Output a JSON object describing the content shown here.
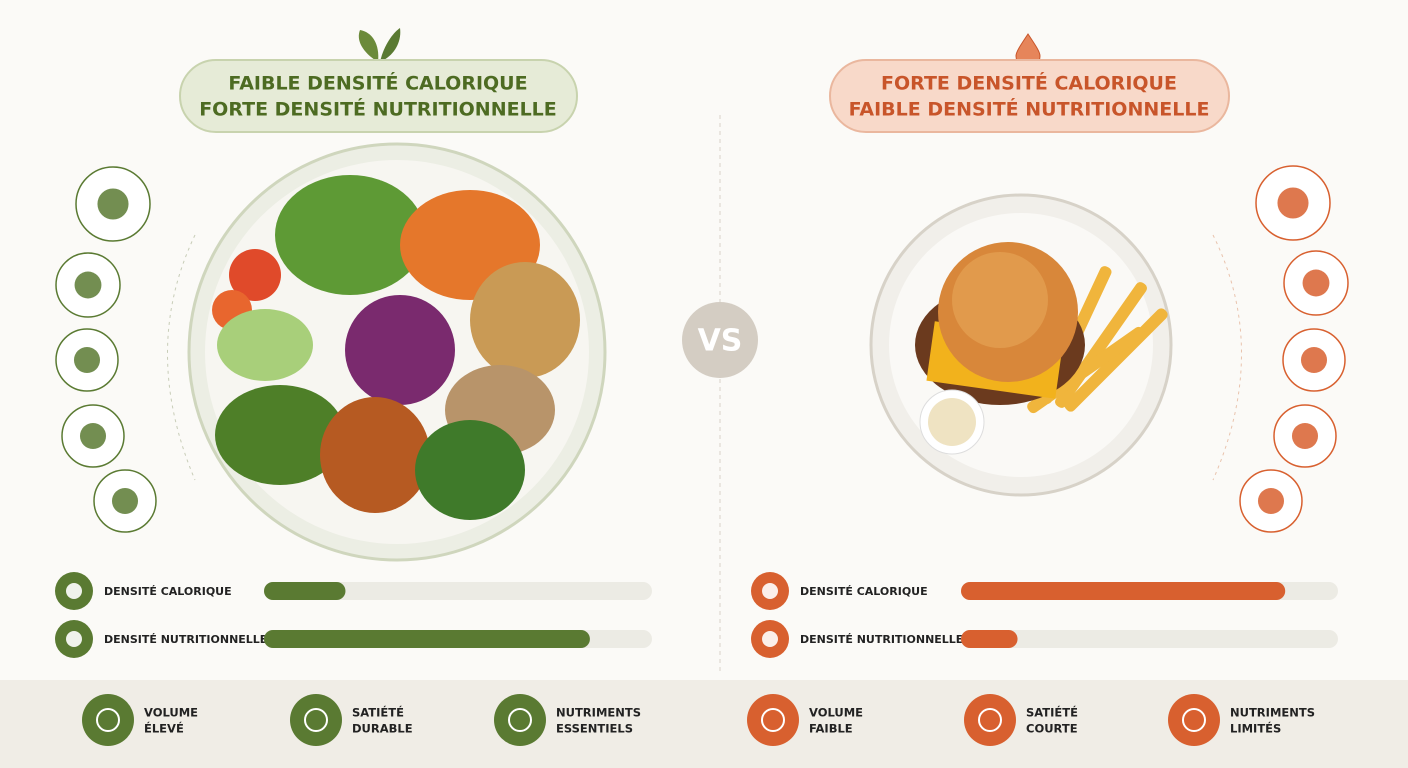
{
  "vs": "VS",
  "scale": [
    0,
    100
  ],
  "left": {
    "title": [
      "FAIBLE DENSITÉ CALORIQUE",
      "FORTE DENSITÉ NUTRITIONNELLE"
    ],
    "color": "#5a7a32",
    "title_color": "#4d6b22",
    "bars": [
      {
        "label": "DENSITÉ CALORIQUE",
        "value": 21
      },
      {
        "label": "DENSITÉ NUTRITIONNELLE",
        "value": 84
      }
    ],
    "features": [
      [
        "VOLUME",
        "ÉLEVÉ"
      ],
      [
        "SATIÉTÉ",
        "DURABLE"
      ],
      [
        "NUTRIMENTS",
        "ESSENTIELS"
      ]
    ]
  },
  "right": {
    "title": [
      "FORTE DENSITÉ CALORIQUE",
      "FAIBLE DENSITÉ NUTRITIONNELLE"
    ],
    "color": "#d8602f",
    "title_color": "#c8552a",
    "bars": [
      {
        "label": "DENSITÉ CALORIQUE",
        "value": 86
      },
      {
        "label": "DENSITÉ NUTRITIONNELLE",
        "value": 15
      }
    ],
    "features": [
      [
        "VOLUME",
        "FAIBLE"
      ],
      [
        "SATIÉTÉ",
        "COURTE"
      ],
      [
        "NUTRIMENTS",
        "LIMITÉS"
      ]
    ]
  }
}
